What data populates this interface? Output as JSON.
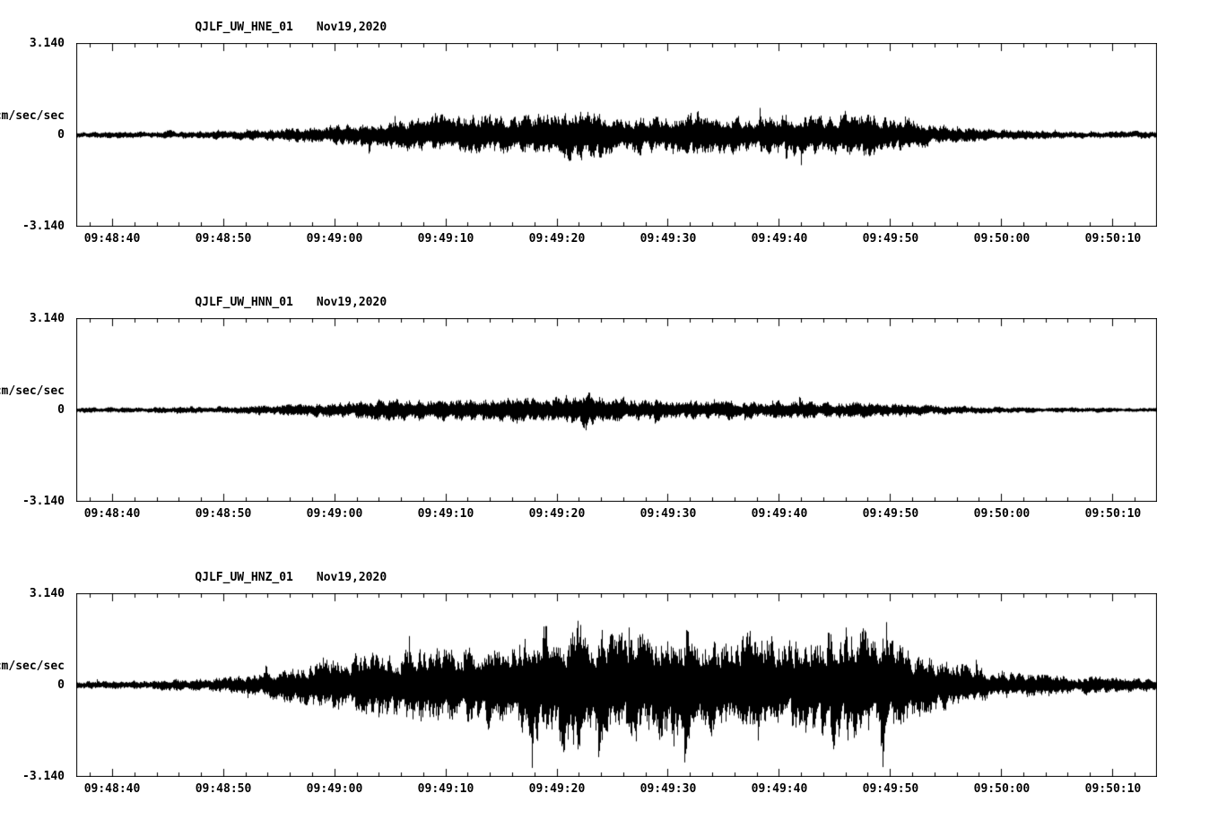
{
  "chart_data": {
    "type": "line",
    "subtype": "seismogram-3-panel",
    "background": "#ffffff",
    "trace_color": "#000000",
    "x_axis": {
      "tick_labels": [
        "09:48:40",
        "09:48:50",
        "09:49:00",
        "09:49:10",
        "09:49:20",
        "09:49:30",
        "09:49:40",
        "09:49:50",
        "09:50:00",
        "09:50:10"
      ],
      "first_tick_frac": 0.0332,
      "major_step_frac": 0.1029,
      "minor_per_major": 5,
      "major_tick_len": 8,
      "minor_tick_len": 4
    },
    "panels": [
      {
        "station": "QJLF_UW_HNE_01",
        "date": "Nov19,2020",
        "ylabel": "cm/sec/sec",
        "y_max_label": "3.140",
        "y_zero_label": "0",
        "y_min_label": "-3.140",
        "ylim": [
          -3.14,
          3.14
        ],
        "envelope": [
          0.05,
          0.05,
          0.05,
          0.06,
          0.06,
          0.07,
          0.09,
          0.12,
          0.16,
          0.2,
          0.24,
          0.27,
          0.3,
          0.27,
          0.31,
          0.34,
          0.29,
          0.27,
          0.3,
          0.25,
          0.27,
          0.31,
          0.26,
          0.34,
          0.28,
          0.18,
          0.12,
          0.09,
          0.07,
          0.06,
          0.05,
          0.05,
          0.05
        ],
        "seed": 101
      },
      {
        "station": "QJLF_UW_HNN_01",
        "date": "Nov19,2020",
        "ylabel": "cm/sec/sec",
        "y_max_label": "3.140",
        "y_zero_label": "0",
        "y_min_label": "-3.140",
        "ylim": [
          -3.14,
          3.14
        ],
        "envelope": [
          0.04,
          0.04,
          0.04,
          0.05,
          0.05,
          0.06,
          0.08,
          0.1,
          0.12,
          0.15,
          0.17,
          0.15,
          0.18,
          0.22,
          0.19,
          0.24,
          0.18,
          0.15,
          0.13,
          0.15,
          0.12,
          0.14,
          0.11,
          0.12,
          0.09,
          0.08,
          0.06,
          0.05,
          0.04,
          0.04,
          0.04,
          0.03,
          0.03
        ],
        "seed": 202
      },
      {
        "station": "QJLF_UW_HNZ_01",
        "date": "Nov19,2020",
        "ylabel": "cm/sec/sec",
        "y_max_label": "3.140",
        "y_zero_label": "0",
        "y_min_label": "-3.140",
        "ylim": [
          -3.14,
          3.14
        ],
        "envelope": [
          0.06,
          0.06,
          0.07,
          0.08,
          0.1,
          0.15,
          0.22,
          0.32,
          0.42,
          0.5,
          0.55,
          0.6,
          0.55,
          0.68,
          0.85,
          0.95,
          0.75,
          0.78,
          0.68,
          0.62,
          0.72,
          0.62,
          0.78,
          0.88,
          0.72,
          0.48,
          0.32,
          0.22,
          0.18,
          0.15,
          0.13,
          0.11,
          0.09
        ],
        "seed": 303
      }
    ]
  }
}
